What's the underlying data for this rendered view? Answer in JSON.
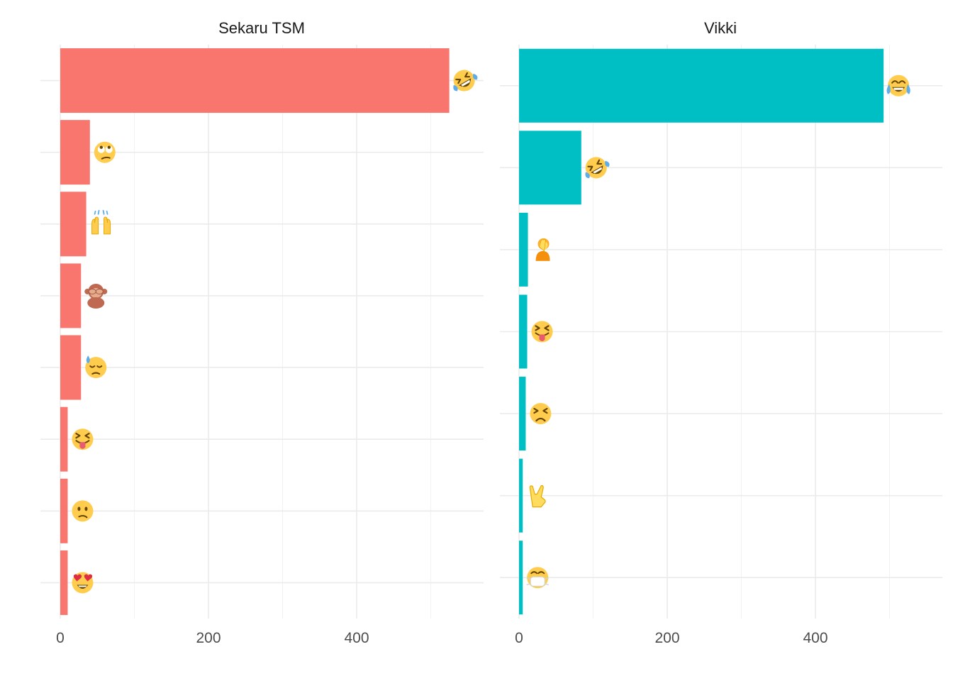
{
  "chart_data": [
    {
      "type": "bar",
      "orientation": "horizontal",
      "title": "Sekaru TSM",
      "color": "#F8766D",
      "xlim": [
        0,
        550
      ],
      "x_ticks": [
        0,
        200,
        400
      ],
      "categories": [
        "rolling-on-floor-laughing",
        "face-with-rolling-eyes",
        "raising-hands",
        "see-no-evil-monkey",
        "downcast-face-with-sweat",
        "squinting-face-with-tongue",
        "confused-face",
        "smiling-face-with-heart-eyes"
      ],
      "values": [
        525,
        40,
        35,
        28,
        28,
        10,
        10,
        10
      ],
      "grid": true
    },
    {
      "type": "bar",
      "orientation": "horizontal",
      "title": "Vikki",
      "color": "#00BFC4",
      "xlim": [
        0,
        550
      ],
      "x_ticks": [
        0,
        200,
        400
      ],
      "categories": [
        "face-with-tears-of-joy",
        "rolling-on-floor-laughing",
        "person-facepalming",
        "squinting-face-with-tongue",
        "persevering-face",
        "sign-of-the-horns",
        "face-with-medical-mask"
      ],
      "values": [
        492,
        84,
        12,
        11,
        9,
        5,
        5
      ],
      "grid": true
    }
  ]
}
